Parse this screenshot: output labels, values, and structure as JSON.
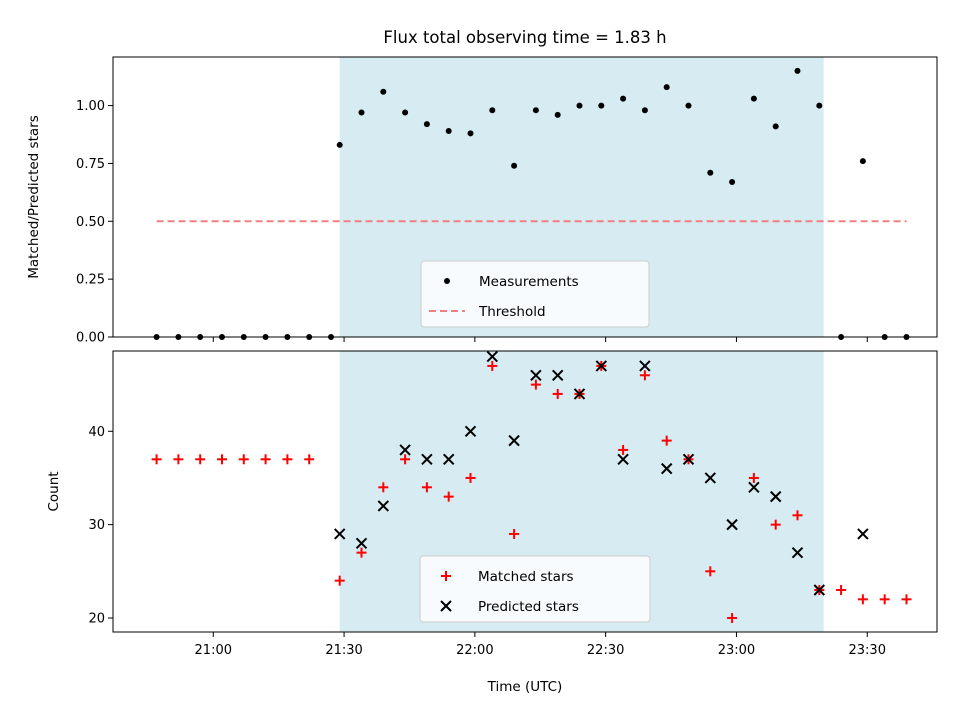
{
  "figure": {
    "title": "Flux total observing time = 1.83 h",
    "xlabel": "Time (UTC)",
    "x_tick_labels": [
      "21:00",
      "21:30",
      "22:00",
      "22:30",
      "23:00",
      "23:30"
    ]
  },
  "chart_data": [
    {
      "type": "scatter",
      "ylabel": "Matched/Predicted stars",
      "xlim": [
        "20:37",
        "23:46"
      ],
      "ylim": [
        0,
        1.21
      ],
      "y_ticks": [
        0.0,
        0.25,
        0.5,
        0.75,
        1.0
      ],
      "y_tick_labels": [
        "0.00",
        "0.25",
        "0.50",
        "0.75",
        "1.00"
      ],
      "shaded_span": {
        "from": "21:29",
        "to": "23:20",
        "color": "#add8e6"
      },
      "legend": {
        "location": "lower center",
        "entries": [
          "Measurements",
          "Threshold"
        ]
      },
      "series": [
        {
          "name": "Measurements",
          "marker": "dot",
          "color": "#000000",
          "points": [
            [
              "20:47",
              0.0
            ],
            [
              "20:52",
              0.0
            ],
            [
              "20:57",
              0.0
            ],
            [
              "21:02",
              0.0
            ],
            [
              "21:07",
              0.0
            ],
            [
              "21:12",
              0.0
            ],
            [
              "21:17",
              0.0
            ],
            [
              "21:22",
              0.0
            ],
            [
              "21:27",
              0.0
            ],
            [
              "21:29",
              0.83
            ],
            [
              "21:34",
              0.97
            ],
            [
              "21:39",
              1.06
            ],
            [
              "21:44",
              0.97
            ],
            [
              "21:49",
              0.92
            ],
            [
              "21:54",
              0.89
            ],
            [
              "21:59",
              0.88
            ],
            [
              "22:04",
              0.98
            ],
            [
              "22:09",
              0.74
            ],
            [
              "22:14",
              0.98
            ],
            [
              "22:19",
              0.96
            ],
            [
              "22:24",
              1.0
            ],
            [
              "22:29",
              1.0
            ],
            [
              "22:34",
              1.03
            ],
            [
              "22:39",
              0.98
            ],
            [
              "22:44",
              1.08
            ],
            [
              "22:49",
              1.0
            ],
            [
              "22:54",
              0.71
            ],
            [
              "22:59",
              0.67
            ],
            [
              "23:04",
              1.03
            ],
            [
              "23:09",
              0.91
            ],
            [
              "23:14",
              1.15
            ],
            [
              "23:19",
              1.0
            ],
            [
              "23:24",
              0.0
            ],
            [
              "23:29",
              0.76
            ],
            [
              "23:34",
              0.0
            ],
            [
              "23:39",
              0.0
            ]
          ]
        },
        {
          "name": "Threshold",
          "style": "dashed",
          "color": "#f08080",
          "points": [
            [
              "20:47",
              0.5
            ],
            [
              "23:39",
              0.5
            ]
          ]
        }
      ]
    },
    {
      "type": "scatter",
      "ylabel": "Count",
      "xlim": [
        "20:37",
        "23:46"
      ],
      "ylim": [
        18.5,
        48.6
      ],
      "y_ticks": [
        20,
        30,
        40
      ],
      "y_tick_labels": [
        "20",
        "30",
        "40"
      ],
      "shaded_span": {
        "from": "21:29",
        "to": "23:20",
        "color": "#add8e6"
      },
      "legend": {
        "location": "lower center",
        "entries": [
          "Matched stars",
          "Predicted stars"
        ]
      },
      "series": [
        {
          "name": "Matched stars",
          "marker": "plus",
          "color": "#ff0000",
          "points": [
            [
              "20:47",
              37
            ],
            [
              "20:52",
              37
            ],
            [
              "20:57",
              37
            ],
            [
              "21:02",
              37
            ],
            [
              "21:07",
              37
            ],
            [
              "21:12",
              37
            ],
            [
              "21:17",
              37
            ],
            [
              "21:22",
              37
            ],
            [
              "21:29",
              24
            ],
            [
              "21:34",
              27
            ],
            [
              "21:39",
              34
            ],
            [
              "21:44",
              37
            ],
            [
              "21:49",
              34
            ],
            [
              "21:54",
              33
            ],
            [
              "21:59",
              35
            ],
            [
              "22:04",
              47
            ],
            [
              "22:09",
              29
            ],
            [
              "22:14",
              45
            ],
            [
              "22:19",
              44
            ],
            [
              "22:24",
              44
            ],
            [
              "22:29",
              47
            ],
            [
              "22:34",
              38
            ],
            [
              "22:39",
              46
            ],
            [
              "22:44",
              39
            ],
            [
              "22:49",
              37
            ],
            [
              "22:54",
              25
            ],
            [
              "22:59",
              20
            ],
            [
              "23:04",
              35
            ],
            [
              "23:09",
              30
            ],
            [
              "23:14",
              31
            ],
            [
              "23:19",
              23
            ],
            [
              "23:24",
              23
            ],
            [
              "23:29",
              22
            ],
            [
              "23:34",
              22
            ],
            [
              "23:39",
              22
            ]
          ]
        },
        {
          "name": "Predicted stars",
          "marker": "x",
          "color": "#000000",
          "points": [
            [
              "21:29",
              29
            ],
            [
              "21:34",
              28
            ],
            [
              "21:39",
              32
            ],
            [
              "21:44",
              38
            ],
            [
              "21:49",
              37
            ],
            [
              "21:54",
              37
            ],
            [
              "21:59",
              40
            ],
            [
              "22:04",
              48
            ],
            [
              "22:09",
              39
            ],
            [
              "22:14",
              46
            ],
            [
              "22:19",
              46
            ],
            [
              "22:24",
              44
            ],
            [
              "22:29",
              47
            ],
            [
              "22:34",
              37
            ],
            [
              "22:39",
              47
            ],
            [
              "22:44",
              36
            ],
            [
              "22:49",
              37
            ],
            [
              "22:54",
              35
            ],
            [
              "22:59",
              30
            ],
            [
              "23:04",
              34
            ],
            [
              "23:09",
              33
            ],
            [
              "23:14",
              27
            ],
            [
              "23:19",
              23
            ],
            [
              "23:29",
              29
            ]
          ]
        }
      ]
    }
  ]
}
